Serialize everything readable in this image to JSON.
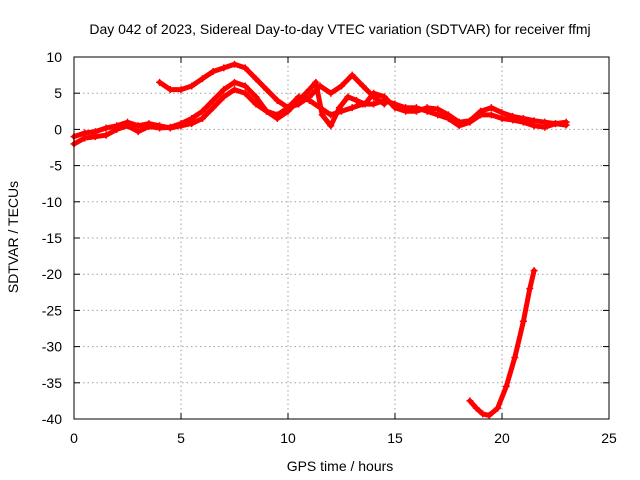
{
  "chart_data": {
    "type": "scatter",
    "title": "Day 042 of 2023, Sidereal Day-to-day VTEC variation (SDTVAR) for receiver ffmj",
    "xlabel": "GPS time / hours",
    "ylabel": "SDTVAR / TECUs",
    "xlim": [
      0,
      25
    ],
    "ylim": [
      -40,
      10
    ],
    "xticks": [
      0,
      5,
      10,
      15,
      20,
      25
    ],
    "yticks": [
      -40,
      -35,
      -30,
      -25,
      -20,
      -15,
      -10,
      -5,
      0,
      5,
      10
    ],
    "grid": true,
    "colors": {
      "series": "#ff0000",
      "axis": "#000000",
      "grid": "#a0a0a0"
    },
    "series": [
      {
        "name": "track-a",
        "points": [
          [
            0.0,
            -2.0
          ],
          [
            0.5,
            -1.2
          ],
          [
            1.0,
            -1.0
          ],
          [
            1.5,
            -0.8
          ],
          [
            2.0,
            0.0
          ],
          [
            2.5,
            0.5
          ],
          [
            3.0,
            -0.3
          ],
          [
            3.5,
            0.4
          ],
          [
            4.0,
            0.2
          ],
          [
            4.5,
            0.3
          ],
          [
            5.0,
            0.8
          ],
          [
            5.5,
            1.5
          ],
          [
            6.0,
            2.5
          ],
          [
            6.5,
            4.0
          ],
          [
            7.0,
            5.5
          ],
          [
            7.5,
            6.5
          ],
          [
            8.0,
            6.0
          ],
          [
            8.5,
            4.5
          ],
          [
            9.0,
            2.5
          ],
          [
            9.5,
            1.5
          ],
          [
            10.0,
            2.5
          ],
          [
            10.5,
            4.0
          ],
          [
            11.0,
            5.5
          ],
          [
            11.3,
            6.5
          ],
          [
            11.6,
            2.0
          ],
          [
            12.0,
            0.5
          ],
          [
            12.4,
            3.0
          ],
          [
            12.8,
            4.5
          ],
          [
            13.2,
            4.0
          ],
          [
            13.6,
            3.5
          ],
          [
            14.0,
            5.0
          ],
          [
            14.5,
            4.5
          ],
          [
            15.0,
            3.0
          ],
          [
            15.5,
            2.5
          ],
          [
            16.0,
            2.5
          ],
          [
            16.5,
            3.0
          ],
          [
            17.0,
            2.8
          ],
          [
            17.5,
            2.0
          ],
          [
            18.0,
            1.0
          ],
          [
            18.5,
            1.2
          ],
          [
            19.0,
            2.5
          ],
          [
            19.5,
            3.0
          ],
          [
            20.0,
            2.3
          ],
          [
            20.5,
            1.8
          ],
          [
            21.0,
            1.5
          ],
          [
            21.5,
            1.2
          ],
          [
            22.0,
            1.0
          ],
          [
            22.5,
            0.8
          ],
          [
            23.0,
            1.0
          ]
        ]
      },
      {
        "name": "track-b",
        "points": [
          [
            0.0,
            -1.0
          ],
          [
            0.5,
            -0.5
          ],
          [
            1.0,
            -0.3
          ],
          [
            1.5,
            0.2
          ],
          [
            2.0,
            0.5
          ],
          [
            2.5,
            1.0
          ],
          [
            3.0,
            0.5
          ],
          [
            3.5,
            0.8
          ],
          [
            4.0,
            0.5
          ],
          [
            4.5,
            0.2
          ],
          [
            5.0,
            0.5
          ],
          [
            5.5,
            0.8
          ],
          [
            6.0,
            1.5
          ],
          [
            6.5,
            3.0
          ],
          [
            7.0,
            4.5
          ],
          [
            7.5,
            5.5
          ],
          [
            8.0,
            5.0
          ],
          [
            8.5,
            3.5
          ],
          [
            9.0,
            2.5
          ],
          [
            9.5,
            2.0
          ],
          [
            10.0,
            3.0
          ],
          [
            10.5,
            4.5
          ],
          [
            11.0,
            4.0
          ],
          [
            11.5,
            3.0
          ],
          [
            12.0,
            2.0
          ],
          [
            12.5,
            2.5
          ],
          [
            13.0,
            3.0
          ],
          [
            13.5,
            3.5
          ],
          [
            14.0,
            3.5
          ],
          [
            14.5,
            4.0
          ],
          [
            15.0,
            3.5
          ],
          [
            15.5,
            3.0
          ],
          [
            16.0,
            3.0
          ],
          [
            16.5,
            2.5
          ],
          [
            17.0,
            2.0
          ],
          [
            17.5,
            1.5
          ],
          [
            18.0,
            0.5
          ],
          [
            18.5,
            1.0
          ],
          [
            19.0,
            2.0
          ],
          [
            19.5,
            2.0
          ],
          [
            20.0,
            1.5
          ],
          [
            20.5,
            1.3
          ],
          [
            21.0,
            1.0
          ],
          [
            21.5,
            0.5
          ],
          [
            22.0,
            0.3
          ],
          [
            22.5,
            0.8
          ],
          [
            23.0,
            0.6
          ]
        ]
      },
      {
        "name": "evening-arc",
        "points": [
          [
            4.0,
            6.5
          ],
          [
            4.5,
            5.5
          ],
          [
            5.0,
            5.5
          ],
          [
            5.5,
            6.0
          ],
          [
            6.0,
            7.0
          ],
          [
            6.5,
            8.0
          ],
          [
            7.0,
            8.5
          ],
          [
            7.5,
            9.0
          ],
          [
            8.0,
            8.5
          ],
          [
            8.5,
            7.0
          ],
          [
            9.0,
            5.5
          ],
          [
            9.5,
            4.0
          ],
          [
            10.0,
            3.0
          ],
          [
            10.5,
            3.5
          ],
          [
            11.0,
            4.5
          ],
          [
            11.5,
            6.0
          ],
          [
            12.0,
            5.0
          ],
          [
            12.5,
            6.0
          ],
          [
            13.0,
            7.5
          ],
          [
            13.5,
            6.0
          ],
          [
            14.0,
            4.5
          ],
          [
            14.5,
            3.5
          ]
        ]
      },
      {
        "name": "steep-segment",
        "points": [
          [
            18.5,
            -37.5
          ],
          [
            18.8,
            -38.5
          ],
          [
            19.1,
            -39.3
          ],
          [
            19.4,
            -39.5
          ],
          [
            19.8,
            -38.5
          ],
          [
            20.2,
            -35.5
          ],
          [
            20.6,
            -31.5
          ],
          [
            21.0,
            -26.5
          ],
          [
            21.3,
            -22.0
          ],
          [
            21.5,
            -19.5
          ]
        ]
      }
    ]
  }
}
